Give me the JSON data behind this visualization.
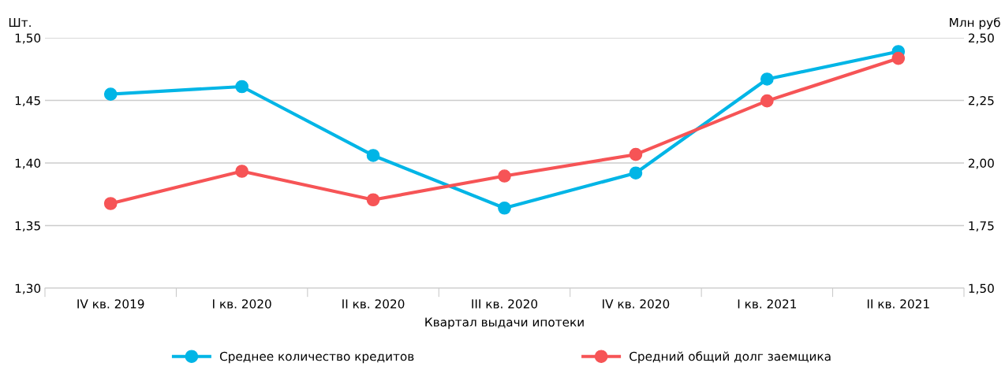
{
  "chart_data": {
    "type": "line",
    "xlabel": "Квартал выдачи ипотеки",
    "ylabel": "Шт.",
    "y2label": "Млн руб",
    "categories": [
      "IV кв. 2019",
      "I кв. 2020",
      "II кв. 2020",
      "III кв. 2020",
      "IV кв. 2020",
      "I кв. 2021",
      "II кв. 2021"
    ],
    "series": [
      {
        "name": "Среднее количество кредитов",
        "color": "#00b5e6",
        "values": [
          1.455,
          1.461,
          1.406,
          1.364,
          1.392,
          1.467,
          1.489
        ]
      },
      {
        "name": "Средний общий долг заемщика",
        "color": "#f65456",
        "axis": "y2",
        "values": [
          1.838,
          1.967,
          1.853,
          1.948,
          2.034,
          2.248,
          2.418
        ]
      }
    ],
    "ylim": [
      1.3,
      1.5
    ],
    "yticks": [
      {
        "value": 1.3,
        "label": "1,30"
      },
      {
        "value": 1.35,
        "label": "1,35"
      },
      {
        "value": 1.4,
        "label": "1,40"
      },
      {
        "value": 1.45,
        "label": "1,45"
      },
      {
        "value": 1.5,
        "label": "1,50"
      }
    ],
    "y2lim": [
      1.5,
      2.5
    ],
    "y2ticks": [
      {
        "value": 1.5,
        "label": "1,50"
      },
      {
        "value": 1.75,
        "label": "1,75"
      },
      {
        "value": 2.0,
        "label": "2,00"
      },
      {
        "value": 2.25,
        "label": "2,25"
      },
      {
        "value": 2.5,
        "label": "2,50"
      }
    ],
    "grid": "y",
    "legend": "bottom",
    "marker": "circle",
    "line_style": "solid"
  }
}
